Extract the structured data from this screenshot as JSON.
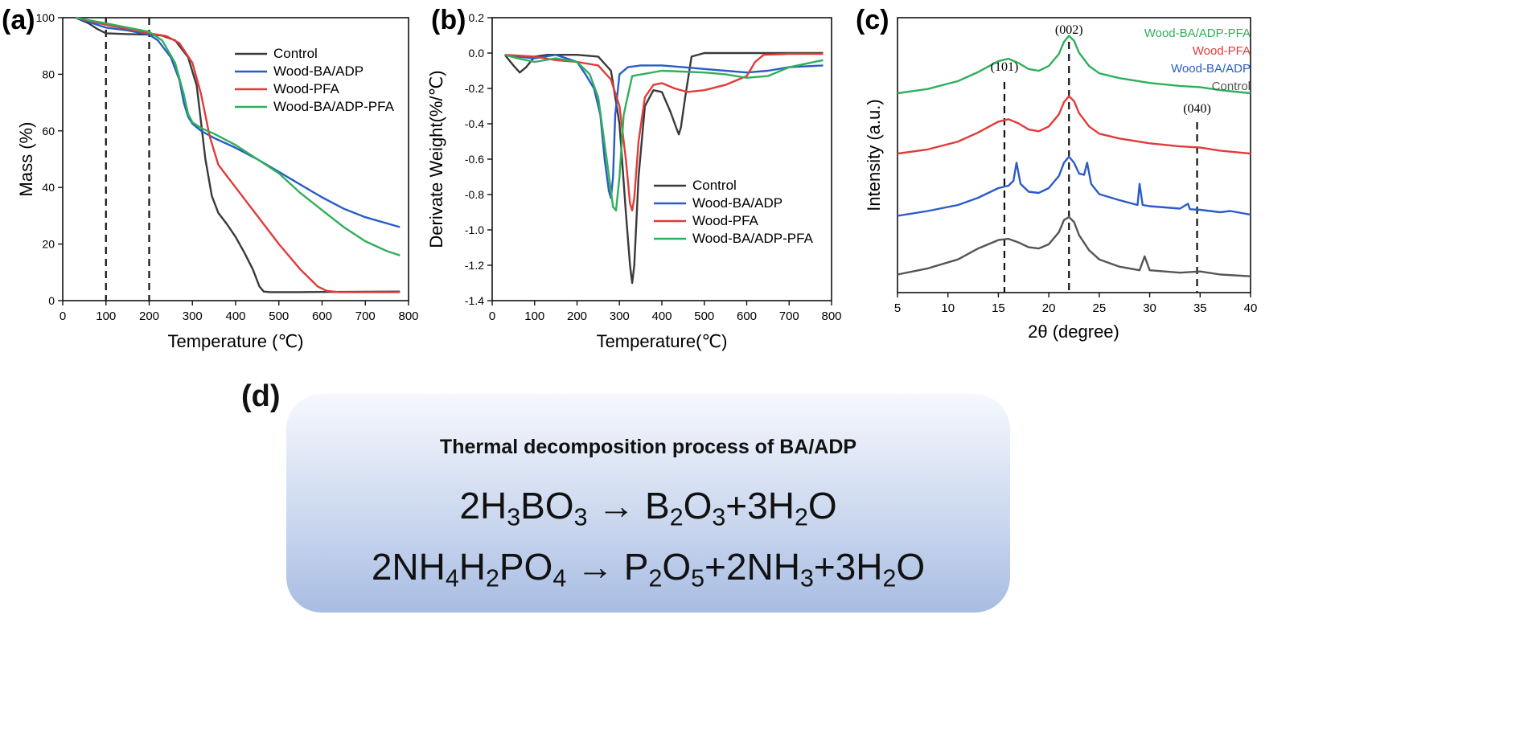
{
  "chart_data": [
    {
      "id": "a",
      "panel_label": "(a)",
      "type": "line",
      "xlabel": "Temperature (℃)",
      "ylabel": "Mass (%)",
      "xlim": [
        0,
        800
      ],
      "ylim": [
        0,
        100
      ],
      "xticks": [
        "0",
        "100",
        "200",
        "300",
        "400",
        "500",
        "600",
        "700",
        "800"
      ],
      "yticks": [
        "0",
        "20",
        "40",
        "60",
        "80",
        "100"
      ],
      "vlines": [
        100,
        200
      ],
      "legend_position": "upper-right",
      "series": [
        {
          "name": "Control",
          "color": "#3a3a3a",
          "x": [
            30,
            60,
            80,
            100,
            150,
            200,
            230,
            260,
            290,
            310,
            330,
            345,
            360,
            380,
            400,
            420,
            440,
            455,
            465,
            480,
            550,
            650,
            780
          ],
          "y": [
            100,
            98,
            96,
            94.5,
            94.2,
            94,
            93.7,
            92,
            86,
            76,
            50,
            37,
            31,
            27,
            22.5,
            17,
            11,
            5,
            3.2,
            3,
            3,
            3.1,
            3.2
          ]
        },
        {
          "name": "Wood-BA/ADP",
          "color": "#2a5cc8",
          "x": [
            30,
            100,
            150,
            200,
            220,
            250,
            270,
            280,
            290,
            300,
            320,
            350,
            400,
            450,
            500,
            550,
            600,
            650,
            700,
            780
          ],
          "y": [
            100,
            96.5,
            95.5,
            94,
            92,
            86,
            78,
            70,
            65,
            62.5,
            60,
            57.5,
            54,
            50,
            45.5,
            41,
            36.5,
            32.5,
            29.5,
            26
          ]
        },
        {
          "name": "Wood-PFA",
          "color": "#e23a3a",
          "x": [
            30,
            100,
            150,
            200,
            240,
            270,
            300,
            320,
            340,
            360,
            400,
            450,
            500,
            550,
            590,
            610,
            625,
            640,
            700,
            780
          ],
          "y": [
            100,
            97.5,
            96,
            94.5,
            93.5,
            91,
            84,
            73,
            58,
            48,
            40,
            30,
            20,
            11,
            5,
            3.5,
            3.2,
            3,
            3,
            3
          ]
        },
        {
          "name": "Wood-BA/ADP-PFA",
          "color": "#2fb05a",
          "x": [
            30,
            100,
            150,
            200,
            230,
            260,
            280,
            290,
            300,
            320,
            350,
            400,
            450,
            500,
            550,
            600,
            650,
            700,
            750,
            780
          ],
          "y": [
            100,
            98,
            96.5,
            95,
            92,
            84,
            73,
            66,
            63,
            61,
            59,
            55,
            50,
            45,
            38,
            32,
            26,
            21,
            17.5,
            16
          ]
        }
      ]
    },
    {
      "id": "b",
      "panel_label": "(b)",
      "type": "line",
      "xlabel": "Temperature(℃)",
      "ylabel": "Derivate Weight(%/℃)",
      "xlim": [
        0,
        800
      ],
      "ylim": [
        -1.4,
        0.2
      ],
      "xticks": [
        "0",
        "100",
        "200",
        "300",
        "400",
        "500",
        "600",
        "700",
        "800"
      ],
      "yticks": [
        "-1.4",
        "-1.2",
        "-1.0",
        "-0.8",
        "-0.6",
        "-0.4",
        "-0.2",
        "0.0",
        "0.2"
      ],
      "legend_position": "lower-right",
      "series": [
        {
          "name": "Control",
          "color": "#3a3a3a",
          "x": [
            30,
            50,
            65,
            80,
            100,
            130,
            200,
            250,
            280,
            300,
            315,
            325,
            330,
            335,
            345,
            360,
            380,
            400,
            420,
            435,
            440,
            445,
            455,
            470,
            500,
            780
          ],
          "y": [
            -0.01,
            -0.07,
            -0.11,
            -0.08,
            -0.02,
            -0.01,
            -0.01,
            -0.02,
            -0.1,
            -0.4,
            -0.9,
            -1.2,
            -1.3,
            -1.2,
            -0.7,
            -0.3,
            -0.21,
            -0.22,
            -0.33,
            -0.43,
            -0.46,
            -0.42,
            -0.25,
            -0.02,
            0,
            0
          ]
        },
        {
          "name": "Wood-BA/ADP",
          "color": "#2a5cc8",
          "x": [
            30,
            60,
            100,
            150,
            200,
            220,
            240,
            255,
            265,
            275,
            280,
            285,
            290,
            300,
            320,
            350,
            400,
            450,
            500,
            550,
            600,
            650,
            700,
            780
          ],
          "y": [
            -0.01,
            -0.02,
            -0.03,
            -0.01,
            -0.05,
            -0.12,
            -0.2,
            -0.35,
            -0.6,
            -0.78,
            -0.82,
            -0.7,
            -0.35,
            -0.12,
            -0.08,
            -0.07,
            -0.07,
            -0.08,
            -0.09,
            -0.1,
            -0.11,
            -0.1,
            -0.08,
            -0.07
          ]
        },
        {
          "name": "Wood-PFA",
          "color": "#e23a3a",
          "x": [
            30,
            100,
            150,
            200,
            250,
            280,
            300,
            315,
            325,
            330,
            335,
            345,
            360,
            380,
            400,
            430,
            460,
            500,
            550,
            600,
            620,
            640,
            700,
            780
          ],
          "y": [
            -0.01,
            -0.02,
            -0.04,
            -0.05,
            -0.07,
            -0.15,
            -0.3,
            -0.6,
            -0.85,
            -0.89,
            -0.82,
            -0.5,
            -0.25,
            -0.18,
            -0.17,
            -0.2,
            -0.22,
            -0.21,
            -0.18,
            -0.13,
            -0.05,
            -0.01,
            -0.005,
            -0.005
          ]
        },
        {
          "name": "Wood-BA/ADP-PFA",
          "color": "#2fb05a",
          "x": [
            30,
            60,
            100,
            150,
            200,
            230,
            250,
            270,
            285,
            292,
            300,
            310,
            330,
            400,
            500,
            550,
            600,
            650,
            700,
            780
          ],
          "y": [
            -0.01,
            -0.03,
            -0.05,
            -0.03,
            -0.05,
            -0.12,
            -0.25,
            -0.6,
            -0.87,
            -0.89,
            -0.7,
            -0.35,
            -0.13,
            -0.1,
            -0.11,
            -0.12,
            -0.14,
            -0.13,
            -0.08,
            -0.04
          ]
        }
      ]
    },
    {
      "id": "c",
      "panel_label": "(c)",
      "type": "line",
      "xlabel": "2θ (degree)",
      "ylabel": "Intensity (a.u.)",
      "xlim": [
        5,
        40
      ],
      "xticks": [
        "5",
        "10",
        "15",
        "20",
        "25",
        "30",
        "35",
        "40"
      ],
      "y_units": "arbitrary (offset stacked)",
      "vlines": [
        15.6,
        22.0,
        34.7
      ],
      "peak_labels": [
        {
          "text": "(101)",
          "x": 15.6
        },
        {
          "text": "(002)",
          "x": 22.0
        },
        {
          "text": "(040)",
          "x": 34.7
        }
      ],
      "legend_position": "upper-right",
      "series": [
        {
          "name": "Wood-BA/ADP-PFA",
          "color": "#2fb05a",
          "offset": 3.0,
          "x": [
            5,
            8,
            11,
            13,
            15,
            16,
            17,
            18,
            19,
            20,
            21,
            21.5,
            22,
            22.5,
            23,
            24,
            25,
            27,
            30,
            33,
            35,
            37,
            40
          ],
          "y": [
            0.05,
            0.12,
            0.25,
            0.4,
            0.58,
            0.62,
            0.55,
            0.45,
            0.42,
            0.5,
            0.7,
            0.9,
            1.0,
            0.92,
            0.72,
            0.5,
            0.38,
            0.3,
            0.22,
            0.17,
            0.15,
            0.1,
            0.05
          ]
        },
        {
          "name": "Wood-PFA",
          "color": "#e23a3a",
          "offset": 2.0,
          "x": [
            5,
            8,
            11,
            13,
            15,
            16,
            17,
            18,
            19,
            20,
            21,
            21.5,
            22,
            22.5,
            23,
            24,
            25,
            27,
            30,
            33,
            35,
            37,
            40
          ],
          "y": [
            0.05,
            0.12,
            0.25,
            0.4,
            0.58,
            0.62,
            0.55,
            0.45,
            0.42,
            0.5,
            0.7,
            0.9,
            1.0,
            0.92,
            0.72,
            0.5,
            0.38,
            0.3,
            0.22,
            0.17,
            0.15,
            0.1,
            0.05
          ]
        },
        {
          "name": "Wood-BA/ADP",
          "color": "#2a5cc8",
          "offset": 1.0,
          "x": [
            5,
            8,
            11,
            13,
            15,
            16,
            16.5,
            16.8,
            17.2,
            18,
            19,
            20,
            21,
            21.5,
            22,
            22.5,
            23,
            23.5,
            23.8,
            24.2,
            25,
            27,
            28.8,
            29,
            29.3,
            30,
            33,
            33.8,
            34,
            35,
            37,
            38,
            40
          ],
          "y": [
            0.02,
            0.1,
            0.2,
            0.32,
            0.48,
            0.52,
            0.6,
            0.9,
            0.55,
            0.42,
            0.4,
            0.48,
            0.68,
            0.9,
            1.0,
            0.9,
            0.72,
            0.7,
            0.9,
            0.55,
            0.38,
            0.28,
            0.2,
            0.55,
            0.2,
            0.18,
            0.14,
            0.22,
            0.13,
            0.12,
            0.08,
            0.1,
            0.04
          ]
        },
        {
          "name": "Control",
          "color": "#555555",
          "offset": 0.0,
          "x": [
            5,
            8,
            11,
            13,
            15,
            16,
            17,
            18,
            19,
            20,
            21,
            21.5,
            22,
            22.5,
            23,
            24,
            25,
            27,
            29,
            29.5,
            30,
            33,
            35,
            37,
            40
          ],
          "y": [
            0.05,
            0.15,
            0.3,
            0.48,
            0.62,
            0.64,
            0.58,
            0.5,
            0.48,
            0.55,
            0.75,
            0.95,
            1.0,
            0.92,
            0.7,
            0.45,
            0.3,
            0.18,
            0.12,
            0.35,
            0.12,
            0.08,
            0.1,
            0.05,
            0.02
          ]
        }
      ]
    }
  ],
  "panel_d": {
    "label": "(d)",
    "title": "Thermal decomposition process of BA/ADP"
  }
}
